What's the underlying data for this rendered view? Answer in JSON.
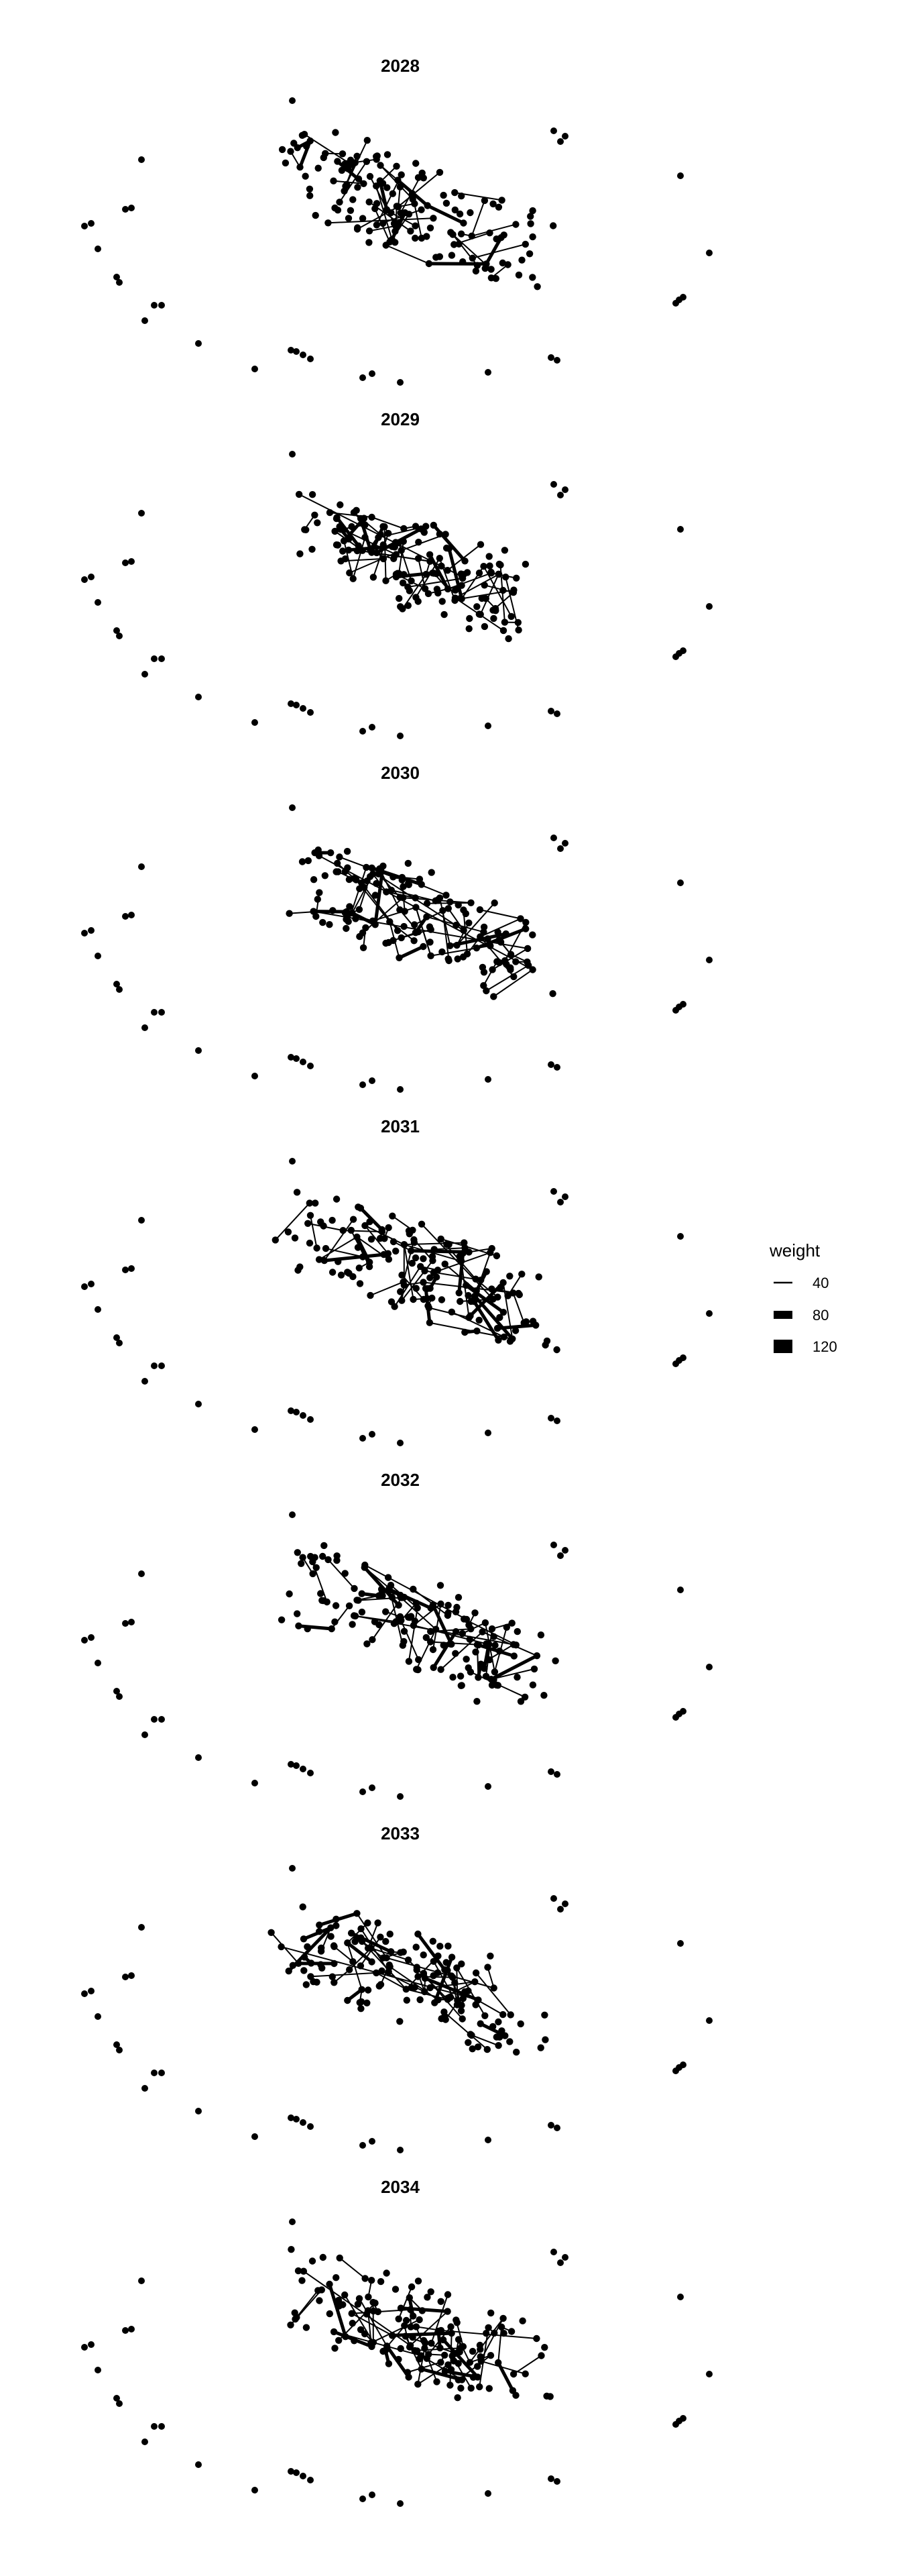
{
  "panels": [
    {
      "title": "2028"
    },
    {
      "title": "2029"
    },
    {
      "title": "2030"
    },
    {
      "title": "2031"
    },
    {
      "title": "2032"
    },
    {
      "title": "2033"
    },
    {
      "title": "2034"
    }
  ],
  "legend": {
    "title": "weight",
    "entries": [
      {
        "label": "40",
        "weight": 40
      },
      {
        "label": "80",
        "weight": 80
      },
      {
        "label": "120",
        "weight": 120
      }
    ]
  },
  "colors": {
    "ink": "#000000",
    "background": "#ffffff"
  }
}
